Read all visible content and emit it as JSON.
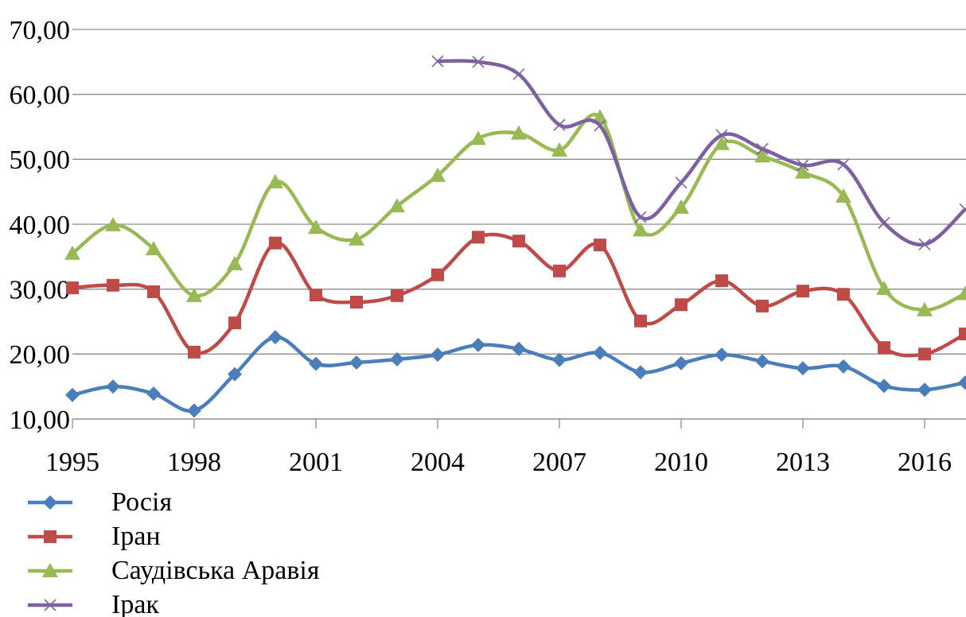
{
  "chart_data": {
    "type": "line",
    "x": [
      1995,
      1996,
      1997,
      1998,
      1999,
      2000,
      2001,
      2002,
      2003,
      2004,
      2005,
      2006,
      2007,
      2008,
      2009,
      2010,
      2011,
      2012,
      2013,
      2014,
      2015,
      2016,
      2017
    ],
    "xlim": [
      1995,
      2017
    ],
    "xticks": [
      1995,
      1998,
      2001,
      2004,
      2007,
      2010,
      2013,
      2016
    ],
    "ylim": [
      10,
      70
    ],
    "yticks": [
      {
        "value": 10,
        "label": "10,00"
      },
      {
        "value": 20,
        "label": "20,00"
      },
      {
        "value": 30,
        "label": "30,00"
      },
      {
        "value": 40,
        "label": "40,00"
      },
      {
        "value": 50,
        "label": "50,00"
      },
      {
        "value": 60,
        "label": "60,00"
      },
      {
        "value": 70,
        "label": "70,00"
      }
    ],
    "grid": true,
    "legend": "bottom-left",
    "series": [
      {
        "name": "Росія",
        "color": "#4a7ebb",
        "marker": "diamond",
        "values": [
          13.7,
          15.0,
          13.9,
          11.3,
          16.9,
          22.6,
          18.5,
          18.7,
          19.2,
          19.9,
          21.4,
          20.8,
          19.1,
          20.2,
          17.2,
          18.6,
          19.9,
          18.9,
          17.8,
          18.1,
          15.1,
          14.5,
          15.6
        ]
      },
      {
        "name": "Іран",
        "color": "#be4b48",
        "marker": "square",
        "values": [
          30.2,
          30.6,
          29.6,
          20.3,
          24.8,
          37.1,
          29.1,
          28.0,
          29.0,
          32.2,
          38.0,
          37.4,
          32.8,
          36.8,
          25.1,
          27.6,
          31.3,
          27.4,
          29.7,
          29.2,
          21.0,
          20.0,
          23.1
        ]
      },
      {
        "name": "Саудівська Аравія",
        "color": "#98b954",
        "marker": "triangle",
        "values": [
          35.5,
          39.9,
          36.2,
          29.0,
          33.9,
          46.5,
          39.5,
          37.7,
          42.8,
          47.5,
          53.2,
          54.0,
          51.4,
          56.5,
          39.1,
          42.6,
          52.4,
          50.5,
          48.0,
          44.3,
          30.1,
          26.8,
          29.3
        ]
      },
      {
        "name": "Ірак",
        "color": "#7d60a0",
        "marker": "x",
        "values": [
          null,
          null,
          null,
          null,
          null,
          null,
          null,
          null,
          null,
          65.1,
          65.0,
          63.1,
          55.3,
          55.2,
          41.1,
          46.4,
          53.7,
          51.6,
          49.1,
          49.2,
          40.2,
          36.9,
          42.3
        ]
      }
    ]
  }
}
